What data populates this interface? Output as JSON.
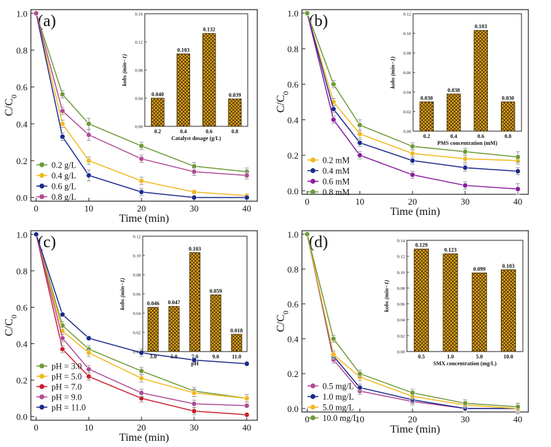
{
  "colors": {
    "green": "#6f9a3a",
    "yellow": "#f2b81f",
    "navy": "#1c2a8c",
    "magenta": "#b04a96",
    "red": "#c8202e",
    "purple": "#8a1ea0",
    "bar_fill": "#e8a920",
    "bar_hatch": "#3d2a00",
    "errorbar": "#a0a0a0"
  },
  "chart_data": [
    {
      "id": "a",
      "panel_label": "(a)",
      "type": "line",
      "xlabel": "Time (min)",
      "ylabel": "C/C0",
      "x": [
        0,
        5,
        10,
        20,
        30,
        40
      ],
      "xticks": [
        "0",
        "10",
        "20",
        "30",
        "40"
      ],
      "yticks": [
        "0.0",
        "0.2",
        "0.4",
        "0.6",
        "0.8",
        "1.0"
      ],
      "xlim": [
        -1,
        42
      ],
      "ylim": [
        -0.02,
        1.02
      ],
      "legend_position": "bottom-left",
      "series": [
        {
          "name": "0.2 g/L",
          "color": "#6f9a3a",
          "values": [
            1.0,
            0.56,
            0.4,
            0.28,
            0.17,
            0.14
          ],
          "errors": [
            0,
            0.02,
            0.03,
            0.02,
            0.02,
            0.02
          ]
        },
        {
          "name": "0.4 g/L",
          "color": "#f2b81f",
          "values": [
            1.0,
            0.4,
            0.2,
            0.09,
            0.03,
            0.01
          ],
          "errors": [
            0,
            0.02,
            0.02,
            0.02,
            0.01,
            0.01
          ]
        },
        {
          "name": "0.6 g/L",
          "color": "#1c2a8c",
          "values": [
            1.0,
            0.33,
            0.12,
            0.03,
            0.0,
            0.0
          ],
          "errors": [
            0,
            0.02,
            0.03,
            0.02,
            0.01,
            0.01
          ]
        },
        {
          "name": "0.8 g/L",
          "color": "#b04a96",
          "values": [
            1.0,
            0.47,
            0.34,
            0.21,
            0.14,
            0.12
          ],
          "errors": [
            0,
            0.02,
            0.03,
            0.02,
            0.02,
            0.02
          ]
        }
      ],
      "inset": {
        "type": "bar",
        "ylabel": "kobs (min−1)",
        "xlabel": "Catalyst dosage (g/L)",
        "categories": [
          "0.2",
          "0.4",
          "0.6",
          "0.8"
        ],
        "values": [
          0.04,
          0.103,
          0.132,
          0.039
        ],
        "value_labels": [
          "0.040",
          "0.103",
          "0.132",
          "0.039"
        ],
        "yticks": [
          "0.00",
          "0.04",
          "0.08",
          "0.12",
          "0.16"
        ],
        "ylim": [
          0,
          0.16
        ]
      }
    },
    {
      "id": "b",
      "panel_label": "(b)",
      "type": "line",
      "xlabel": "Time (min)",
      "ylabel": "C/C0",
      "x": [
        0,
        5,
        10,
        20,
        30,
        40
      ],
      "xticks": [
        "0",
        "10",
        "20",
        "30",
        "40"
      ],
      "yticks": [
        "0.0",
        "0.2",
        "0.4",
        "0.6",
        "0.8",
        "1.0"
      ],
      "xlim": [
        -1,
        42
      ],
      "ylim": [
        -0.02,
        1.02
      ],
      "legend_position": "bottom-left",
      "series": [
        {
          "name": "0.2 mM",
          "color": "#f2b81f",
          "values": [
            1.0,
            0.5,
            0.32,
            0.21,
            0.18,
            0.17
          ],
          "errors": [
            0,
            0.02,
            0.02,
            0.02,
            0.02,
            0.02
          ]
        },
        {
          "name": "0.4 mM",
          "color": "#1c2a8c",
          "values": [
            1.0,
            0.46,
            0.27,
            0.17,
            0.13,
            0.11
          ],
          "errors": [
            0,
            0.02,
            0.02,
            0.02,
            0.02,
            0.02
          ]
        },
        {
          "name": "0.6 mM",
          "color": "#8a1ea0",
          "values": [
            1.0,
            0.4,
            0.2,
            0.09,
            0.03,
            0.01
          ],
          "errors": [
            0,
            0.02,
            0.02,
            0.02,
            0.02,
            0.03
          ]
        },
        {
          "name": "0.8 mM",
          "color": "#6f9a3a",
          "values": [
            1.0,
            0.6,
            0.37,
            0.25,
            0.22,
            0.19
          ],
          "errors": [
            0,
            0.02,
            0.03,
            0.02,
            0.02,
            0.03
          ]
        }
      ],
      "inset": {
        "type": "bar",
        "ylabel": "kobs (min−1)",
        "xlabel": "PMS concentration (mM)",
        "categories": [
          "0.2",
          "0.4",
          "0.6",
          "0.8"
        ],
        "values": [
          0.03,
          0.038,
          0.103,
          0.03
        ],
        "value_labels": [
          "0.030",
          "0.038",
          "0.103",
          "0.030"
        ],
        "yticks": [
          "0.00",
          "0.02",
          "0.04",
          "0.06",
          "0.08",
          "0.10",
          "0.12"
        ],
        "ylim": [
          0,
          0.12
        ]
      }
    },
    {
      "id": "c",
      "panel_label": "(c)",
      "type": "line",
      "xlabel": "Time (min)",
      "ylabel": "C/C0",
      "x": [
        0,
        5,
        10,
        20,
        30,
        40
      ],
      "xticks": [
        "0",
        "10",
        "20",
        "30",
        "40"
      ],
      "yticks": [
        "0.0",
        "0.2",
        "0.4",
        "0.6",
        "0.8",
        "1.0"
      ],
      "xlim": [
        -1,
        42
      ],
      "ylim": [
        -0.02,
        1.02
      ],
      "legend_position": "bottom-left",
      "series": [
        {
          "name": "pH = 3.0",
          "color": "#6f9a3a",
          "values": [
            1.0,
            0.5,
            0.37,
            0.25,
            0.14,
            0.1
          ],
          "errors": [
            0,
            0.02,
            0.02,
            0.02,
            0.02,
            0.02
          ]
        },
        {
          "name": "pH = 5.0",
          "color": "#f2b81f",
          "values": [
            1.0,
            0.47,
            0.35,
            0.21,
            0.13,
            0.1
          ],
          "errors": [
            0,
            0.02,
            0.02,
            0.02,
            0.02,
            0.02
          ]
        },
        {
          "name": "pH = 7.0",
          "color": "#c8202e",
          "values": [
            1.0,
            0.37,
            0.22,
            0.1,
            0.03,
            0.01
          ],
          "errors": [
            0,
            0.02,
            0.02,
            0.02,
            0.02,
            0.01
          ]
        },
        {
          "name": "pH = 9.0",
          "color": "#b04a96",
          "values": [
            1.0,
            0.43,
            0.26,
            0.13,
            0.07,
            0.06
          ],
          "errors": [
            0,
            0.02,
            0.02,
            0.02,
            0.02,
            0.01
          ]
        },
        {
          "name": "pH = 11.0",
          "color": "#1c2a8c",
          "values": [
            1.0,
            0.56,
            0.43,
            0.35,
            0.31,
            0.29
          ],
          "errors": [
            0,
            0.01,
            0.01,
            0.02,
            0.01,
            0.01
          ]
        }
      ],
      "inset": {
        "type": "bar",
        "ylabel": "kobs (min−1)",
        "xlabel": "pH",
        "categories": [
          "3.0",
          "5.0",
          "7.0",
          "9.0",
          "11.0"
        ],
        "values": [
          0.046,
          0.047,
          0.103,
          0.059,
          0.018
        ],
        "value_labels": [
          "0.046",
          "0.047",
          "0.103",
          "0.059",
          "0.018"
        ],
        "yticks": [
          "0.00",
          "0.02",
          "0.04",
          "0.06",
          "0.08",
          "0.10",
          "0.12"
        ],
        "ylim": [
          0,
          0.12
        ]
      }
    },
    {
      "id": "d",
      "panel_label": "(d)",
      "type": "line",
      "xlabel": "Time (min)",
      "ylabel": "C/C0",
      "x": [
        0,
        5,
        10,
        20,
        30,
        40
      ],
      "xticks": [
        "0",
        "10",
        "20",
        "30",
        "40"
      ],
      "yticks": [
        "0.0",
        "0.2",
        "0.4",
        "0.6",
        "0.8",
        "1.0"
      ],
      "xlim": [
        -1,
        42
      ],
      "ylim": [
        -0.02,
        1.02
      ],
      "legend_position": "bottom-left",
      "series": [
        {
          "name": "0.5 mg/L",
          "color": "#b04a96",
          "values": [
            1.0,
            0.28,
            0.1,
            0.04,
            0.0,
            0.0
          ],
          "errors": [
            0,
            0.02,
            0.02,
            0.02,
            0.02,
            0.02
          ]
        },
        {
          "name": "1.0 mg/L",
          "color": "#1c2a8c",
          "values": [
            1.0,
            0.3,
            0.12,
            0.05,
            0.0,
            0.0
          ],
          "errors": [
            0,
            0.02,
            0.02,
            0.02,
            0.02,
            0.02
          ]
        },
        {
          "name": "5.0 mg/L",
          "color": "#f2b81f",
          "values": [
            1.0,
            0.31,
            0.18,
            0.07,
            0.02,
            0.0
          ],
          "errors": [
            0,
            0.02,
            0.02,
            0.02,
            0.02,
            0.03
          ]
        },
        {
          "name": "10.0 mg/L",
          "color": "#6f9a3a",
          "values": [
            1.0,
            0.4,
            0.2,
            0.09,
            0.03,
            0.01
          ],
          "errors": [
            0,
            0.02,
            0.02,
            0.02,
            0.02,
            0.02
          ]
        }
      ],
      "inset": {
        "type": "bar",
        "ylabel": "kobs (min−1)",
        "xlabel": "SMX concentration (mg/L)",
        "categories": [
          "0.5",
          "1.0",
          "5.0",
          "10.0"
        ],
        "values": [
          0.129,
          0.123,
          0.099,
          0.103
        ],
        "value_labels": [
          "0.129",
          "0.123",
          "0.099",
          "0.103"
        ],
        "yticks": [
          "0.00",
          "0.02",
          "0.04",
          "0.06",
          "0.08",
          "0.10",
          "0.12",
          "0.14"
        ],
        "ylim": [
          0,
          0.14
        ]
      }
    }
  ]
}
